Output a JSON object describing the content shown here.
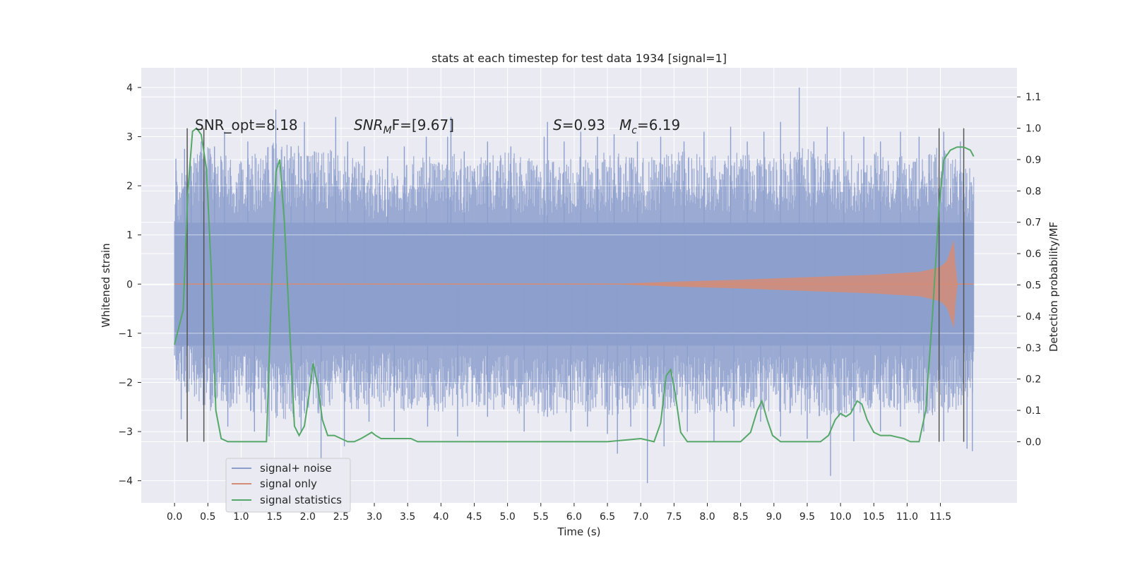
{
  "chart_data": {
    "type": "line",
    "title": "stats at each timestep for test data 1934 [signal=1]",
    "xlabel": "Time (s)",
    "ylabel": "Whitened strain",
    "ylabel_right": "Detection probability/MF",
    "xlim": [
      -0.5,
      12.65
    ],
    "ylim": [
      -4.45,
      4.4
    ],
    "ylim_right": [
      -0.195,
      1.1928
    ],
    "x_ticks": [
      "0.0",
      "0.5",
      "1.0",
      "1.5",
      "2.0",
      "2.5",
      "3.0",
      "3.5",
      "4.0",
      "4.5",
      "5.0",
      "5.5",
      "6.0",
      "6.5",
      "7.0",
      "7.5",
      "8.0",
      "8.5",
      "9.0",
      "9.5",
      "10.0",
      "10.5",
      "11.0",
      "11.5"
    ],
    "y_ticks_left": [
      "−4",
      "−3",
      "−2",
      "−1",
      "0",
      "1",
      "2",
      "3",
      "4"
    ],
    "y_ticks_right": [
      "0.0",
      "0.1",
      "0.2",
      "0.3",
      "0.4",
      "0.5",
      "0.6",
      "0.7",
      "0.8",
      "0.9",
      "1.0",
      "1.1"
    ],
    "grid": true,
    "legend_position": "lower-left",
    "annotations": {
      "snr_opt": "SNR_opt=8.18",
      "snr_mf_base": "SNR",
      "snr_mf_sub": "M",
      "snr_mf_rest": "F=[9.67]",
      "s_label": "S",
      "s_value": "=0.93",
      "mc_label": "M",
      "mc_sub": "c",
      "mc_value": "=6.19"
    },
    "colors": {
      "noise": "#8c9fcc",
      "signal": "#d58c74",
      "stat": "#55a868",
      "vline": "#555555",
      "panel": "#eaeaf2",
      "grid": "#ffffff"
    },
    "vertical_lines_x": [
      0.19,
      0.44,
      11.48,
      11.85
    ],
    "series": [
      {
        "name": "signal+ noise",
        "axis": "left",
        "envelope_upper": [
          [
            0.0,
            2.3
          ],
          [
            0.5,
            2.8
          ],
          [
            1.0,
            2.5
          ],
          [
            1.5,
            2.9
          ],
          [
            2.0,
            2.8
          ],
          [
            2.5,
            2.7
          ],
          [
            3.0,
            2.4
          ],
          [
            3.5,
            2.6
          ],
          [
            4.0,
            2.7
          ],
          [
            4.5,
            2.6
          ],
          [
            5.0,
            2.7
          ],
          [
            5.5,
            2.5
          ],
          [
            6.0,
            2.6
          ],
          [
            6.5,
            2.7
          ],
          [
            7.0,
            2.6
          ],
          [
            7.5,
            2.8
          ],
          [
            8.0,
            2.6
          ],
          [
            8.5,
            2.7
          ],
          [
            9.0,
            2.6
          ],
          [
            9.5,
            2.8
          ],
          [
            10.0,
            2.6
          ],
          [
            10.5,
            2.7
          ],
          [
            11.0,
            2.6
          ],
          [
            11.5,
            2.8
          ],
          [
            12.0,
            2.3
          ]
        ],
        "envelope_lower": [
          [
            0.0,
            -2.0
          ],
          [
            0.5,
            -2.6
          ],
          [
            1.0,
            -2.5
          ],
          [
            1.5,
            -2.8
          ],
          [
            2.0,
            -2.7
          ],
          [
            2.5,
            -2.6
          ],
          [
            3.0,
            -2.5
          ],
          [
            3.5,
            -2.6
          ],
          [
            4.0,
            -2.6
          ],
          [
            4.5,
            -2.5
          ],
          [
            5.0,
            -2.6
          ],
          [
            5.5,
            -2.7
          ],
          [
            6.0,
            -2.6
          ],
          [
            6.5,
            -2.7
          ],
          [
            7.0,
            -2.6
          ],
          [
            7.5,
            -2.6
          ],
          [
            8.0,
            -2.7
          ],
          [
            8.5,
            -2.6
          ],
          [
            9.0,
            -2.6
          ],
          [
            9.5,
            -2.7
          ],
          [
            10.0,
            -2.7
          ],
          [
            10.5,
            -2.6
          ],
          [
            11.0,
            -2.6
          ],
          [
            11.5,
            -2.7
          ],
          [
            12.0,
            -2.4
          ]
        ],
        "spikes": [
          [
            0.02,
            2.55
          ],
          [
            0.15,
            2.75
          ],
          [
            0.25,
            2.4
          ],
          [
            0.4,
            2.9
          ],
          [
            0.6,
            2.8
          ],
          [
            0.75,
            3.1
          ],
          [
            1.1,
            2.9
          ],
          [
            1.52,
            3.55
          ],
          [
            1.65,
            2.6
          ],
          [
            1.75,
            2.8
          ],
          [
            1.95,
            3.3
          ],
          [
            2.1,
            2.7
          ],
          [
            2.42,
            3.4
          ],
          [
            2.6,
            2.9
          ],
          [
            2.85,
            2.8
          ],
          [
            3.2,
            2.6
          ],
          [
            3.45,
            2.8
          ],
          [
            3.78,
            3.0
          ],
          [
            4.1,
            3.0
          ],
          [
            4.15,
            3.4
          ],
          [
            4.35,
            2.7
          ],
          [
            4.7,
            2.9
          ],
          [
            5.05,
            2.8
          ],
          [
            5.55,
            3.0
          ],
          [
            5.6,
            3.3
          ],
          [
            5.85,
            2.9
          ],
          [
            6.1,
            3.1
          ],
          [
            6.35,
            3.0
          ],
          [
            6.6,
            3.05
          ],
          [
            6.95,
            2.9
          ],
          [
            7.3,
            3.0
          ],
          [
            7.65,
            2.9
          ],
          [
            7.95,
            3.1
          ],
          [
            8.35,
            3.2
          ],
          [
            8.6,
            2.9
          ],
          [
            8.85,
            3.1
          ],
          [
            9.1,
            3.3
          ],
          [
            9.38,
            4.0
          ],
          [
            9.6,
            2.9
          ],
          [
            9.8,
            3.2
          ],
          [
            10.05,
            3.1
          ],
          [
            10.35,
            3.0
          ],
          [
            10.6,
            2.9
          ],
          [
            10.9,
            3.1
          ],
          [
            11.18,
            3.0
          ],
          [
            11.55,
            3.1
          ],
          [
            11.8,
            2.9
          ],
          [
            0.1,
            -2.75
          ],
          [
            0.55,
            -2.5
          ],
          [
            0.8,
            -2.9
          ],
          [
            1.2,
            -3.0
          ],
          [
            1.42,
            -3.1
          ],
          [
            1.9,
            -3.0
          ],
          [
            2.2,
            -3.8
          ],
          [
            2.55,
            -3.3
          ],
          [
            2.92,
            -2.8
          ],
          [
            3.3,
            -3.0
          ],
          [
            3.8,
            -2.9
          ],
          [
            4.25,
            -3.1
          ],
          [
            4.7,
            -2.7
          ],
          [
            5.25,
            -3.0
          ],
          [
            5.6,
            -2.7
          ],
          [
            5.95,
            -3.0
          ],
          [
            6.2,
            -2.9
          ],
          [
            6.5,
            -3.05
          ],
          [
            6.65,
            -3.45
          ],
          [
            6.85,
            -2.9
          ],
          [
            7.1,
            -4.05
          ],
          [
            7.35,
            -3.3
          ],
          [
            7.7,
            -3.0
          ],
          [
            8.1,
            -3.2
          ],
          [
            8.4,
            -2.9
          ],
          [
            8.8,
            -2.8
          ],
          [
            9.1,
            -3.1
          ],
          [
            9.5,
            -3.15
          ],
          [
            9.85,
            -3.9
          ],
          [
            10.2,
            -3.2
          ],
          [
            10.6,
            -3.0
          ],
          [
            10.9,
            -2.9
          ],
          [
            11.25,
            -3.0
          ],
          [
            11.55,
            -3.2
          ],
          [
            11.9,
            -3.35
          ],
          [
            11.98,
            -3.4
          ]
        ]
      },
      {
        "name": "signal only",
        "axis": "left",
        "amplitude": [
          [
            0.0,
            0.0
          ],
          [
            6.5,
            0.0
          ],
          [
            7.5,
            0.05
          ],
          [
            8.5,
            0.09
          ],
          [
            9.5,
            0.14
          ],
          [
            10.5,
            0.19
          ],
          [
            11.2,
            0.25
          ],
          [
            11.5,
            0.35
          ],
          [
            11.6,
            0.48
          ],
          [
            11.7,
            0.9
          ],
          [
            11.75,
            0.0
          ],
          [
            12.0,
            0.0
          ]
        ]
      },
      {
        "name": "signal statistics",
        "axis": "right",
        "values": [
          [
            0.0,
            0.31
          ],
          [
            0.13,
            0.42
          ],
          [
            0.2,
            0.8
          ],
          [
            0.27,
            0.99
          ],
          [
            0.33,
            1.0
          ],
          [
            0.4,
            0.98
          ],
          [
            0.48,
            0.87
          ],
          [
            0.55,
            0.55
          ],
          [
            0.62,
            0.1
          ],
          [
            0.7,
            0.01
          ],
          [
            0.8,
            0.0
          ],
          [
            1.0,
            0.0
          ],
          [
            1.2,
            0.0
          ],
          [
            1.38,
            0.0
          ],
          [
            1.45,
            0.45
          ],
          [
            1.52,
            0.86
          ],
          [
            1.58,
            0.9
          ],
          [
            1.65,
            0.7
          ],
          [
            1.72,
            0.4
          ],
          [
            1.8,
            0.05
          ],
          [
            1.87,
            0.02
          ],
          [
            1.95,
            0.05
          ],
          [
            2.02,
            0.15
          ],
          [
            2.08,
            0.25
          ],
          [
            2.15,
            0.18
          ],
          [
            2.22,
            0.07
          ],
          [
            2.3,
            0.02
          ],
          [
            2.4,
            0.02
          ],
          [
            2.5,
            0.01
          ],
          [
            2.6,
            0.0
          ],
          [
            2.7,
            0.0
          ],
          [
            2.8,
            0.01
          ],
          [
            2.88,
            0.02
          ],
          [
            2.96,
            0.03
          ],
          [
            3.02,
            0.02
          ],
          [
            3.1,
            0.01
          ],
          [
            3.3,
            0.01
          ],
          [
            3.55,
            0.01
          ],
          [
            3.65,
            0.0
          ],
          [
            4.0,
            0.0
          ],
          [
            5.0,
            0.0
          ],
          [
            5.5,
            0.0
          ],
          [
            5.8,
            0.0
          ],
          [
            6.5,
            0.0
          ],
          [
            7.0,
            0.01
          ],
          [
            7.2,
            0.0
          ],
          [
            7.3,
            0.06
          ],
          [
            7.38,
            0.21
          ],
          [
            7.45,
            0.23
          ],
          [
            7.52,
            0.15
          ],
          [
            7.6,
            0.03
          ],
          [
            7.7,
            0.0
          ],
          [
            8.5,
            0.0
          ],
          [
            8.65,
            0.03
          ],
          [
            8.75,
            0.1
          ],
          [
            8.82,
            0.13
          ],
          [
            8.9,
            0.07
          ],
          [
            8.98,
            0.02
          ],
          [
            9.1,
            0.0
          ],
          [
            9.7,
            0.0
          ],
          [
            9.82,
            0.02
          ],
          [
            9.92,
            0.07
          ],
          [
            10.0,
            0.09
          ],
          [
            10.08,
            0.08
          ],
          [
            10.15,
            0.09
          ],
          [
            10.25,
            0.13
          ],
          [
            10.32,
            0.12
          ],
          [
            10.4,
            0.07
          ],
          [
            10.5,
            0.03
          ],
          [
            10.6,
            0.02
          ],
          [
            10.75,
            0.02
          ],
          [
            10.95,
            0.01
          ],
          [
            11.05,
            0.0
          ],
          [
            11.18,
            0.0
          ],
          [
            11.28,
            0.1
          ],
          [
            11.38,
            0.4
          ],
          [
            11.48,
            0.75
          ],
          [
            11.55,
            0.9
          ],
          [
            11.65,
            0.93
          ],
          [
            11.75,
            0.94
          ],
          [
            11.85,
            0.94
          ],
          [
            11.95,
            0.93
          ],
          [
            12.0,
            0.91
          ]
        ]
      }
    ]
  }
}
